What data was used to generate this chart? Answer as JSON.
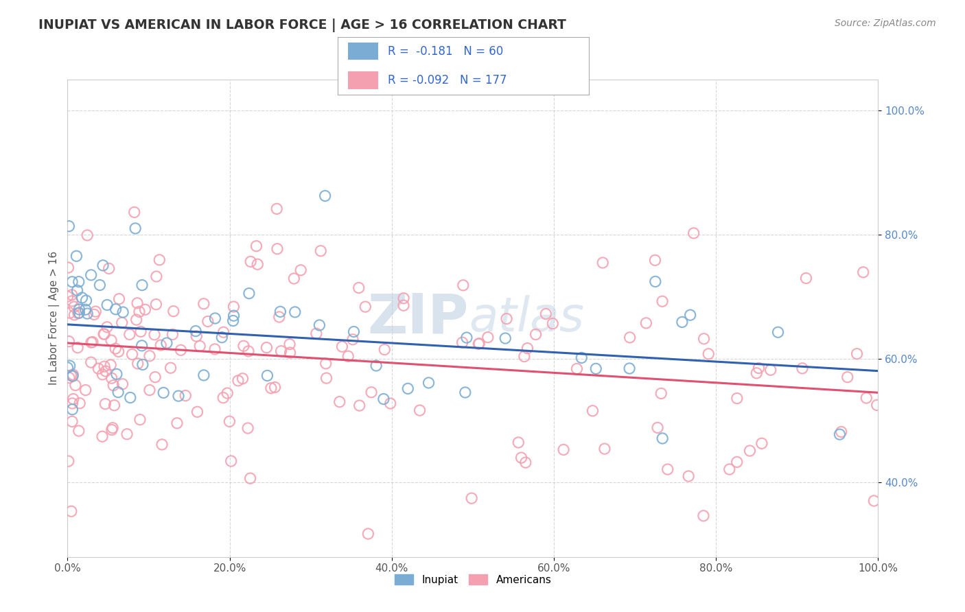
{
  "title": "INUPIAT VS AMERICAN IN LABOR FORCE | AGE > 16 CORRELATION CHART",
  "source": "Source: ZipAtlas.com",
  "ylabel": "In Labor Force | Age > 16",
  "xlim": [
    0.0,
    1.0
  ],
  "ylim": [
    0.28,
    1.05
  ],
  "yticks": [
    0.4,
    0.6,
    0.8,
    1.0
  ],
  "ytick_labels": [
    "40.0%",
    "60.0%",
    "80.0%",
    "100.0%"
  ],
  "xticks": [
    0.0,
    0.2,
    0.4,
    0.6,
    0.8,
    1.0
  ],
  "xtick_labels": [
    "0.0%",
    "20.0%",
    "40.0%",
    "60.0%",
    "80.0%",
    "100.0%"
  ],
  "inupiat_color": "#7BADD4",
  "americans_color": "#F5A0B0",
  "inupiat_line_color": "#3060B0",
  "americans_line_color": "#E05070",
  "R_inupiat": -0.181,
  "N_inupiat": 60,
  "R_americans": -0.092,
  "N_americans": 177,
  "legend_label_1": "Inupiat",
  "legend_label_2": "Americans",
  "background_color": "#ffffff",
  "grid_color": "#cccccc",
  "title_color": "#333333",
  "tick_color": "#5588cc",
  "inupiat_seed": 42,
  "americans_seed": 99,
  "inupiat_line_y0": 0.655,
  "inupiat_line_y1": 0.58,
  "americans_line_y0": 0.625,
  "americans_line_y1": 0.545
}
